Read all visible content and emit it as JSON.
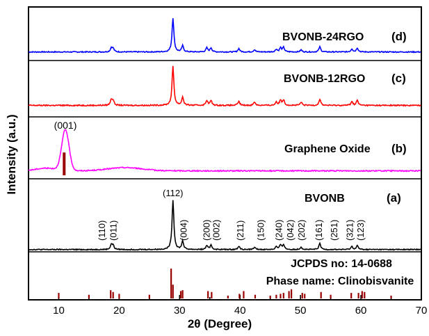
{
  "chart_data": {
    "type": "line",
    "xlabel": "2θ (Degree)",
    "ylabel": "Intensity (a.u.)",
    "xlim": [
      5,
      70
    ],
    "x_ticks": [
      10,
      20,
      30,
      40,
      50,
      60,
      70
    ],
    "colors": {
      "d": "#0000ff",
      "c": "#ff0000",
      "b": "#ff00ff",
      "a": "#000000",
      "ref": "#990000"
    },
    "panels": [
      {
        "id": "d",
        "name": "BVONB-24RGO",
        "tag": "(d)",
        "baseline": 0.03,
        "peaks": [
          [
            18.7,
            0.12
          ],
          [
            19.0,
            0.1
          ],
          [
            28.9,
            1.0
          ],
          [
            30.5,
            0.18
          ],
          [
            34.5,
            0.12
          ],
          [
            35.2,
            0.12
          ],
          [
            39.8,
            0.1
          ],
          [
            42.4,
            0.07
          ],
          [
            46.0,
            0.08
          ],
          [
            46.7,
            0.12
          ],
          [
            47.2,
            0.13
          ],
          [
            50.1,
            0.06
          ],
          [
            53.2,
            0.15
          ],
          [
            58.5,
            0.09
          ],
          [
            59.4,
            0.12
          ]
        ]
      },
      {
        "id": "c",
        "name": "BVONB-12RGO",
        "tag": "(c)",
        "baseline": 0.03,
        "peaks": [
          [
            18.7,
            0.15
          ],
          [
            19.0,
            0.12
          ],
          [
            28.9,
            1.0
          ],
          [
            30.5,
            0.21
          ],
          [
            34.5,
            0.13
          ],
          [
            35.2,
            0.12
          ],
          [
            39.8,
            0.1
          ],
          [
            42.4,
            0.09
          ],
          [
            46.0,
            0.09
          ],
          [
            46.7,
            0.13
          ],
          [
            47.2,
            0.14
          ],
          [
            50.1,
            0.08
          ],
          [
            53.2,
            0.16
          ],
          [
            58.5,
            0.1
          ],
          [
            59.4,
            0.13
          ]
        ]
      },
      {
        "id": "b",
        "name": "Graphene Oxide",
        "tag": "(b)",
        "broad_peak": [
          11.1,
          0.75,
          0.85
        ],
        "hump": [
          21.0,
          0.06,
          4.0
        ],
        "baseline": 0.02,
        "label": "(001)",
        "label_x": 11.1,
        "ref_stick": [
          10.9,
          0.42
        ]
      },
      {
        "id": "a",
        "name": "BVONB",
        "tag": "(a)",
        "baseline": 0.02,
        "peaks": [
          [
            18.7,
            0.1
          ],
          [
            19.0,
            0.08
          ],
          [
            28.9,
            1.0
          ],
          [
            30.5,
            0.17
          ],
          [
            34.5,
            0.08
          ],
          [
            35.2,
            0.09
          ],
          [
            39.8,
            0.07
          ],
          [
            42.4,
            0.05
          ],
          [
            46.0,
            0.06
          ],
          [
            46.7,
            0.09
          ],
          [
            47.2,
            0.1
          ],
          [
            50.1,
            0.05
          ],
          [
            53.2,
            0.12
          ],
          [
            58.5,
            0.06
          ],
          [
            59.4,
            0.08
          ]
        ],
        "hkl_labels": [
          {
            "text": "(110)",
            "x": 17.2
          },
          {
            "text": "(011)",
            "x": 19.1
          },
          {
            "text": "(112)",
            "x": 28.9
          },
          {
            "text": "(004)",
            "x": 30.7
          },
          {
            "text": "(200)",
            "x": 34.5
          },
          {
            "text": "(002)",
            "x": 36.1
          },
          {
            "text": "(211)",
            "x": 40.1
          },
          {
            "text": "(150)",
            "x": 43.5
          },
          {
            "text": "(240)",
            "x": 46.5
          },
          {
            "text": "(042)",
            "x": 48.4
          },
          {
            "text": "(202)",
            "x": 50.2
          },
          {
            "text": "(161)",
            "x": 53.1
          },
          {
            "text": "(251)",
            "x": 55.6
          },
          {
            "text": "(321)",
            "x": 58.2
          },
          {
            "text": "(123)",
            "x": 60.0
          }
        ]
      },
      {
        "id": "ref",
        "lines": [
          "JCPDS no: 14-0688",
          "Phase name: Clinobisvanite"
        ],
        "sticks": [
          [
            10.0,
            0.12
          ],
          [
            15.0,
            0.08
          ],
          [
            18.6,
            0.18
          ],
          [
            19.0,
            0.14
          ],
          [
            20.0,
            0.1
          ],
          [
            25.0,
            0.08
          ],
          [
            28.6,
            0.65
          ],
          [
            28.9,
            0.3
          ],
          [
            30.2,
            0.16
          ],
          [
            30.5,
            0.18
          ],
          [
            34.7,
            0.16
          ],
          [
            35.3,
            0.14
          ],
          [
            38.0,
            0.06
          ],
          [
            39.9,
            0.1
          ],
          [
            40.6,
            0.16
          ],
          [
            42.5,
            0.08
          ],
          [
            45.0,
            0.06
          ],
          [
            46.0,
            0.08
          ],
          [
            46.7,
            0.1
          ],
          [
            47.2,
            0.12
          ],
          [
            48.1,
            0.16
          ],
          [
            48.5,
            0.2
          ],
          [
            50.3,
            0.12
          ],
          [
            50.7,
            0.1
          ],
          [
            53.4,
            0.14
          ],
          [
            55.0,
            0.08
          ],
          [
            58.4,
            0.12
          ],
          [
            59.6,
            0.12
          ],
          [
            60.2,
            0.16
          ],
          [
            60.6,
            0.14
          ],
          [
            65.0,
            0.06
          ]
        ]
      }
    ]
  }
}
